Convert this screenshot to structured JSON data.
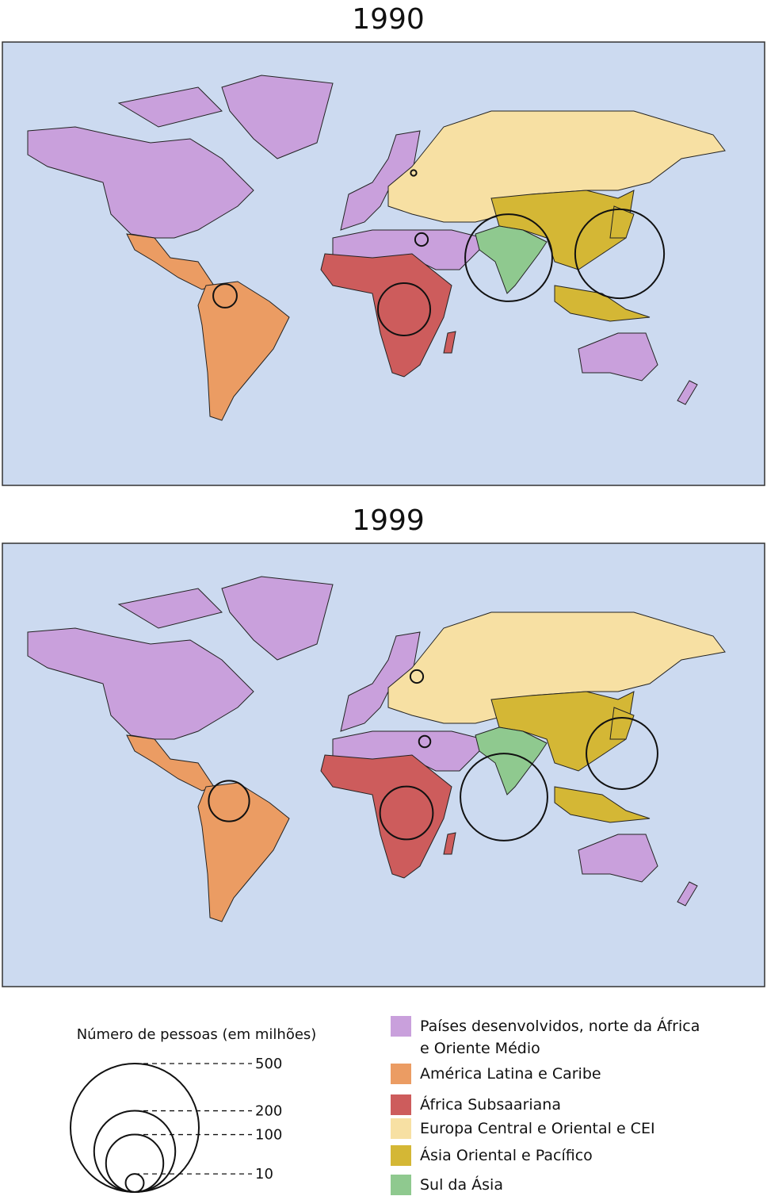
{
  "maps": [
    {
      "title": "1990",
      "values": [
        5,
        17,
        83,
        1,
        240,
        230
      ]
    },
    {
      "title": "1999",
      "values": [
        4,
        50,
        85,
        5,
        154,
        230
      ]
    }
  ],
  "legend": {
    "size_title": "Número de pessoas (em milhões)",
    "size_ticks": [
      500,
      200,
      100,
      10
    ],
    "regions": [
      {
        "name": "Países desenvolvidos, norte da África e Oriente Médio",
        "color": "#c9a0dc"
      },
      {
        "name": "América Latina e Caribe",
        "color": "#eb9c63"
      },
      {
        "name": "África Subsaariana",
        "color": "#cd5c5c"
      },
      {
        "name": "Europa Central e Oriental e CEI",
        "color": "#f7e0a3"
      },
      {
        "name": "Ásia  Oriental e Pacífico",
        "color": "#d4b735"
      },
      {
        "name": "Sul da Ásia",
        "color": "#8fc98f"
      }
    ]
  }
}
